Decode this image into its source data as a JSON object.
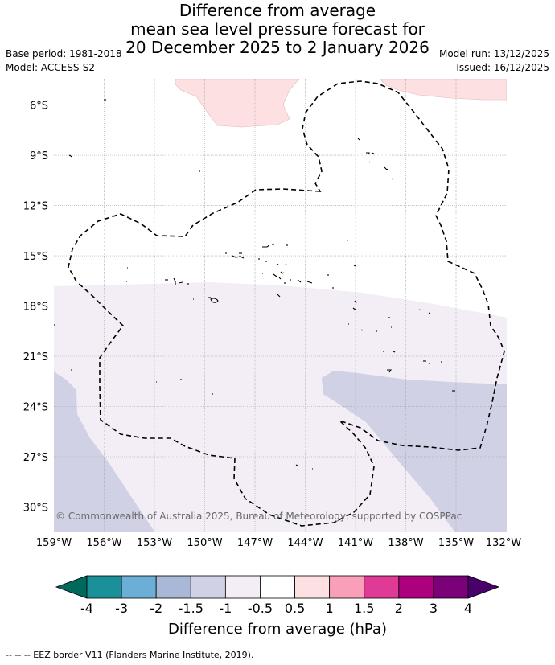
{
  "title": {
    "line1": "Difference from average",
    "line2": "mean sea level pressure forecast for",
    "line3": "20 December 2025 to 2 January 2026"
  },
  "meta": {
    "base_period": "Base period: 1981-2018",
    "model": "Model: ACCESS-S2",
    "model_run": "Model run: 13/12/2025",
    "issued": "Issued: 16/12/2025"
  },
  "map": {
    "longitude_ticks": [
      "159°W",
      "156°W",
      "153°W",
      "150°W",
      "147°W",
      "144°W",
      "141°W",
      "138°W",
      "135°W",
      "132°W"
    ],
    "latitude_ticks": [
      "6°S",
      "9°S",
      "12°S",
      "15°S",
      "18°S",
      "21°S",
      "24°S",
      "27°S",
      "30°S"
    ],
    "copyright": "© Commonwealth of Australia 2025, Bureau of Meteorology, supported by COSPPac",
    "lon_range": [
      -159,
      -132
    ],
    "lat_range": [
      -31.5,
      -4.5
    ]
  },
  "colorbar": {
    "tick_labels": [
      "-4",
      "-3",
      "-2",
      "-1.5",
      "-1",
      "-0.5",
      "0.5",
      "1",
      "1.5",
      "2",
      "3",
      "4"
    ],
    "colors": [
      "#1a9098",
      "#6baed6",
      "#a9b8d6",
      "#d1d1e5",
      "#f3edf5",
      "#ffffff",
      "#fde0e2",
      "#f99fb9",
      "#df3a95",
      "#ad007e",
      "#7a0177"
    ],
    "under_color": "#00695c",
    "over_color": "#49006a",
    "title": "Difference from average (hPa)"
  },
  "footer": "-- -- -- EEZ border V11 (Flanders Marine Institute, 2019)."
}
